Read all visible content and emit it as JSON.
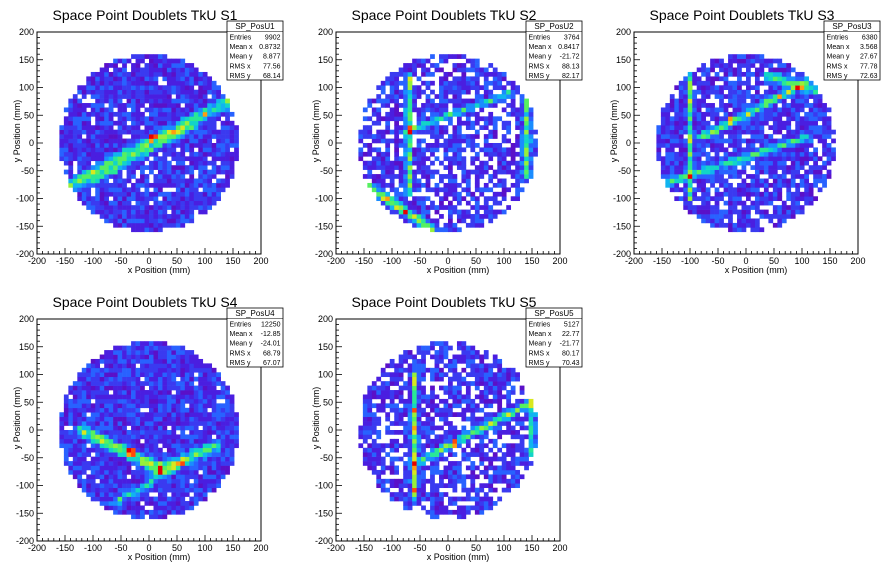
{
  "chart_data": [
    {
      "type": "heatmap",
      "title": "Space Point Doublets TkU S1",
      "xlabel": "x Position (mm)",
      "ylabel": "y Position (mm)",
      "xlim": [
        -200,
        200
      ],
      "ylim": [
        -200,
        200
      ],
      "xticks": [
        -200,
        -150,
        -100,
        -50,
        0,
        50,
        100,
        150,
        200
      ],
      "yticks": [
        -200,
        -150,
        -100,
        -50,
        0,
        50,
        100,
        150,
        200
      ],
      "stats": {
        "name": "SP_PosU1",
        "entries": "9902",
        "mean_x": "0.8732",
        "mean_y": "8.877",
        "rms_x": "77.56",
        "rms_y": "68.14"
      },
      "detector_radius_mm": 160,
      "features": [
        {
          "kind": "band",
          "x1": -150,
          "y1": -80,
          "x2": 150,
          "y2": 80,
          "width": 14,
          "intensity": 0.55
        },
        {
          "kind": "band",
          "x1": -100,
          "y1": -70,
          "x2": 80,
          "y2": 30,
          "width": 10,
          "intensity": 0.35
        },
        {
          "kind": "hotspot",
          "x": 5,
          "y": 10,
          "r": 8,
          "intensity": 0.95
        }
      ],
      "empty_fraction": 0.08
    },
    {
      "type": "heatmap",
      "title": "Space Point Doublets TkU S2",
      "xlabel": "x Position (mm)",
      "ylabel": "y Position (mm)",
      "xlim": [
        -200,
        200
      ],
      "ylim": [
        -200,
        200
      ],
      "xticks": [
        -200,
        -150,
        -100,
        -50,
        0,
        50,
        100,
        150,
        200
      ],
      "yticks": [
        -200,
        -150,
        -100,
        -50,
        0,
        50,
        100,
        150,
        200
      ],
      "stats": {
        "name": "SP_PosU2",
        "entries": "3764",
        "mean_x": "0.8417",
        "mean_y": "-21.72",
        "rms_x": "88.13",
        "rms_y": "82.17"
      },
      "detector_radius_mm": 160,
      "features": [
        {
          "kind": "band",
          "x1": -70,
          "y1": 120,
          "x2": -70,
          "y2": -90,
          "width": 8,
          "intensity": 0.55
        },
        {
          "kind": "band",
          "x1": -140,
          "y1": -80,
          "x2": -30,
          "y2": -155,
          "width": 12,
          "intensity": 0.6
        },
        {
          "kind": "band",
          "x1": -80,
          "y1": 20,
          "x2": 110,
          "y2": 90,
          "width": 8,
          "intensity": 0.4
        },
        {
          "kind": "band",
          "x1": 140,
          "y1": 80,
          "x2": 140,
          "y2": -60,
          "width": 10,
          "intensity": 0.45
        }
      ],
      "empty_fraction": 0.32
    },
    {
      "type": "heatmap",
      "title": "Space Point Doublets TkU S3",
      "xlabel": "x Position (mm)",
      "ylabel": "y Position (mm)",
      "xlim": [
        -200,
        200
      ],
      "ylim": [
        -200,
        200
      ],
      "xticks": [
        -200,
        -150,
        -100,
        -50,
        0,
        50,
        100,
        150,
        200
      ],
      "yticks": [
        -200,
        -150,
        -100,
        -50,
        0,
        50,
        100,
        150,
        200
      ],
      "stats": {
        "name": "SP_PosU3",
        "entries": "6380",
        "mean_x": "3.568",
        "mean_y": "27.67",
        "rms_x": "77.78",
        "rms_y": "72.63"
      },
      "detector_radius_mm": 160,
      "features": [
        {
          "kind": "band",
          "x1": -80,
          "y1": 10,
          "x2": 110,
          "y2": 110,
          "width": 10,
          "intensity": 0.55
        },
        {
          "kind": "band",
          "x1": -100,
          "y1": 120,
          "x2": -100,
          "y2": -100,
          "width": 7,
          "intensity": 0.4
        },
        {
          "kind": "band",
          "x1": -140,
          "y1": -70,
          "x2": 110,
          "y2": 10,
          "width": 10,
          "intensity": 0.45
        },
        {
          "kind": "band",
          "x1": 40,
          "y1": 120,
          "x2": 140,
          "y2": 90,
          "width": 12,
          "intensity": 0.45
        },
        {
          "kind": "hotspot",
          "x": -30,
          "y": 40,
          "r": 7,
          "intensity": 0.95
        }
      ],
      "empty_fraction": 0.15
    },
    {
      "type": "heatmap",
      "title": "Space Point Doublets TkU S4",
      "xlabel": "x Position (mm)",
      "ylabel": "y Position (mm)",
      "xlim": [
        -200,
        200
      ],
      "ylim": [
        -200,
        200
      ],
      "xticks": [
        -200,
        -150,
        -100,
        -50,
        0,
        50,
        100,
        150,
        200
      ],
      "yticks": [
        -200,
        -150,
        -100,
        -50,
        0,
        50,
        100,
        150,
        200
      ],
      "stats": {
        "name": "SP_PosU4",
        "entries": "12250",
        "mean_x": "-12.85",
        "mean_y": "-24.01",
        "rms_x": "68.79",
        "rms_y": "67.07"
      },
      "detector_radius_mm": 160,
      "features": [
        {
          "kind": "band",
          "x1": -120,
          "y1": 0,
          "x2": 20,
          "y2": -70,
          "width": 14,
          "intensity": 0.6
        },
        {
          "kind": "band",
          "x1": 20,
          "y1": -70,
          "x2": 120,
          "y2": -30,
          "width": 14,
          "intensity": 0.5
        },
        {
          "kind": "band",
          "x1": -60,
          "y1": -130,
          "x2": 60,
          "y2": -60,
          "width": 10,
          "intensity": 0.35
        },
        {
          "kind": "hotspot",
          "x": -30,
          "y": -40,
          "r": 8,
          "intensity": 0.95
        }
      ],
      "empty_fraction": 0.04
    },
    {
      "type": "heatmap",
      "title": "Space Point Doublets TkU S5",
      "xlabel": "x Position (mm)",
      "ylabel": "y Position (mm)",
      "xlim": [
        -200,
        200
      ],
      "ylim": [
        -200,
        200
      ],
      "xticks": [
        -200,
        -150,
        -100,
        -50,
        0,
        50,
        100,
        150,
        200
      ],
      "yticks": [
        -200,
        -150,
        -100,
        -50,
        0,
        50,
        100,
        150,
        200
      ],
      "stats": {
        "name": "SP_PosU5",
        "entries": "5127",
        "mean_x": "22.77",
        "mean_y": "-21.77",
        "rms_x": "80.17",
        "rms_y": "70.43"
      },
      "detector_radius_mm": 160,
      "features": [
        {
          "kind": "band",
          "x1": -60,
          "y1": 100,
          "x2": -60,
          "y2": -120,
          "width": 9,
          "intensity": 0.55
        },
        {
          "kind": "band",
          "x1": -60,
          "y1": -60,
          "x2": 150,
          "y2": 50,
          "width": 10,
          "intensity": 0.5
        },
        {
          "kind": "band",
          "x1": 150,
          "y1": 50,
          "x2": 150,
          "y2": -40,
          "width": 8,
          "intensity": 0.4
        },
        {
          "kind": "hotspot",
          "x": 10,
          "y": -25,
          "r": 6,
          "intensity": 0.95
        }
      ],
      "empty_fraction": 0.3
    }
  ],
  "stat_labels": {
    "entries": "Entries",
    "mean_x": "Mean x",
    "mean_y": "Mean y",
    "rms_x": "RMS x",
    "rms_y": "RMS y"
  },
  "colors": {
    "background": "#ffffff",
    "frame": "#000000",
    "text": "#000000"
  }
}
